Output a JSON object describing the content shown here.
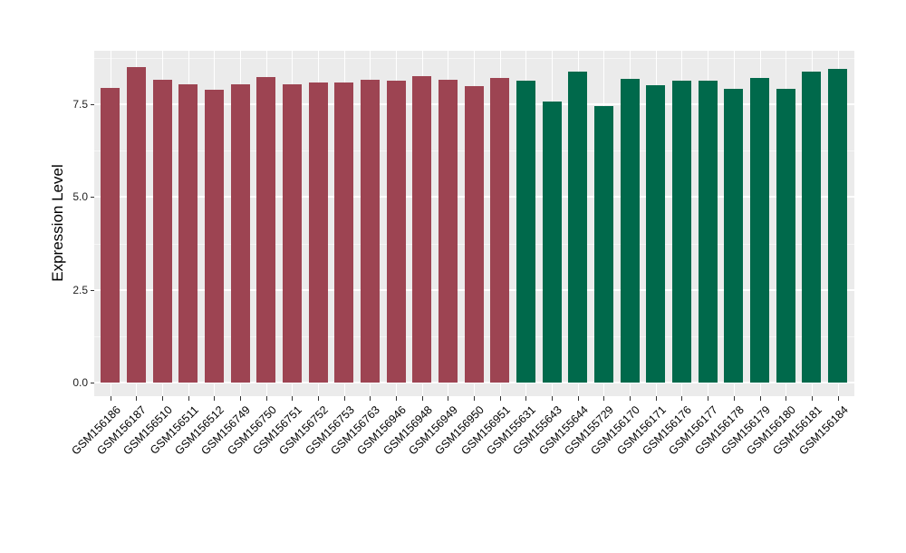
{
  "chart_data": {
    "type": "bar",
    "title": "",
    "xlabel": "",
    "ylabel": "Expression Level",
    "ylim": [
      0,
      8.94
    ],
    "grid": true,
    "legend": "none",
    "yticks": [
      {
        "value": 0.0,
        "label": "0.0"
      },
      {
        "value": 2.5,
        "label": "2.5"
      },
      {
        "value": 5.0,
        "label": "5.0"
      },
      {
        "value": 7.5,
        "label": "7.5"
      }
    ],
    "minor_yticks": [
      1.25,
      3.75,
      6.25,
      8.75
    ],
    "categories": [
      "GSM156186",
      "GSM156187",
      "GSM156510",
      "GSM156511",
      "GSM156512",
      "GSM156749",
      "GSM156750",
      "GSM156751",
      "GSM156752",
      "GSM156753",
      "GSM156763",
      "GSM156946",
      "GSM156948",
      "GSM156949",
      "GSM156950",
      "GSM156951",
      "GSM155631",
      "GSM155643",
      "GSM155644",
      "GSM155729",
      "GSM156170",
      "GSM156171",
      "GSM156176",
      "GSM156177",
      "GSM156178",
      "GSM156179",
      "GSM156180",
      "GSM156181",
      "GSM156184"
    ],
    "values": [
      7.95,
      8.5,
      8.16,
      8.05,
      7.9,
      8.05,
      8.24,
      8.05,
      8.08,
      8.08,
      8.15,
      8.14,
      8.25,
      8.15,
      8.0,
      8.22,
      8.14,
      7.58,
      8.38,
      7.46,
      8.19,
      8.01,
      8.13,
      8.13,
      7.92,
      8.22,
      7.92,
      8.38,
      8.46
    ],
    "groups": [
      "group1",
      "group1",
      "group1",
      "group1",
      "group1",
      "group1",
      "group1",
      "group1",
      "group1",
      "group1",
      "group1",
      "group1",
      "group1",
      "group1",
      "group1",
      "group1",
      "group2",
      "group2",
      "group2",
      "group2",
      "group2",
      "group2",
      "group2",
      "group2",
      "group2",
      "group2",
      "group2",
      "group2",
      "group2"
    ],
    "colors": {
      "group1": "#9D4452",
      "group2": "#00694B",
      "panel_bg": "#EBEBEB",
      "grid": "#FFFFFF",
      "axis_text": "#1F1F1F"
    }
  }
}
